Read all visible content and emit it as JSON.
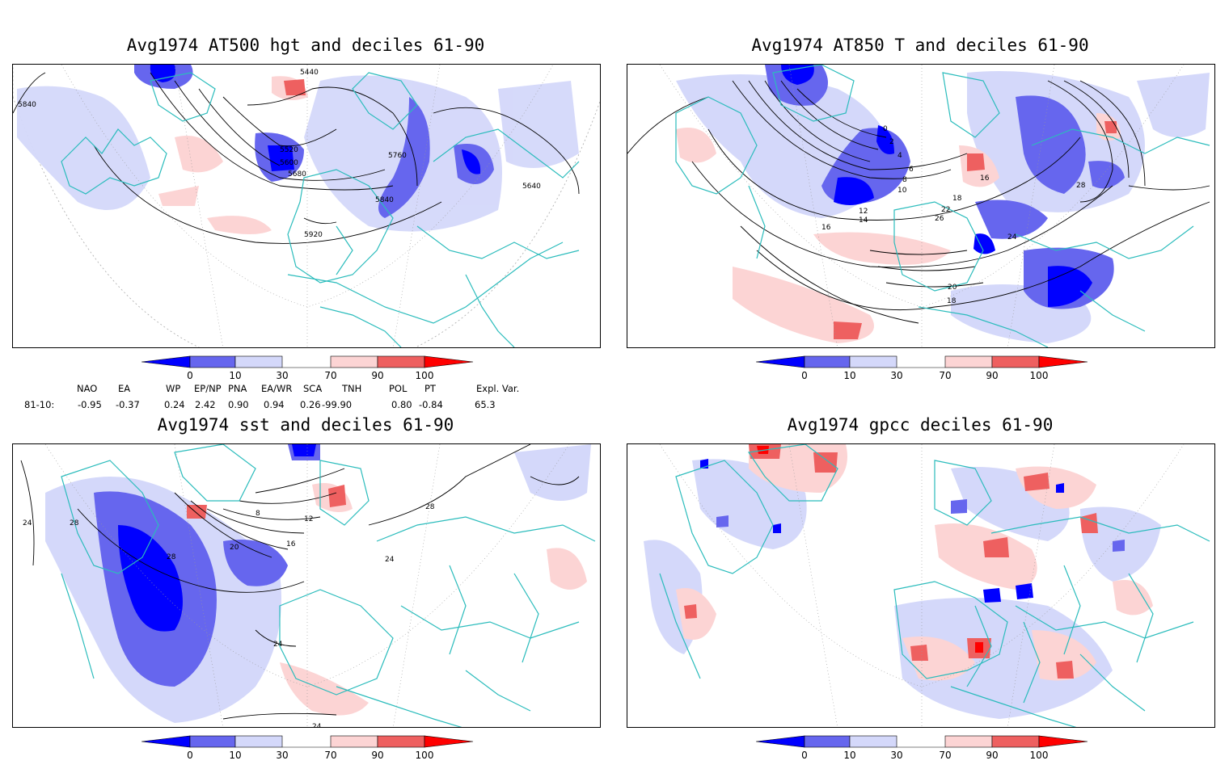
{
  "panels": [
    {
      "title": "Avg1974 AT500 hgt and deciles 61-90",
      "contour_labels": [
        "5440",
        "5840",
        "5520",
        "5600",
        "5680",
        "5760",
        "5840",
        "5640",
        "5920"
      ]
    },
    {
      "title": "Avg1974 AT850 T and deciles 61-90",
      "contour_labels": [
        "0",
        "2",
        "4",
        "6",
        "8",
        "10",
        "12",
        "14",
        "16",
        "18",
        "22",
        "24",
        "26",
        "28",
        "16",
        "20",
        "18"
      ]
    },
    {
      "title": "Avg1974 sst and deciles 61-90",
      "contour_labels": [
        "24",
        "28",
        "28",
        "8",
        "12",
        "16",
        "20",
        "24",
        "24",
        "28",
        "24"
      ]
    },
    {
      "title": "Avg1974 gpcc deciles 61-90",
      "contour_labels": []
    }
  ],
  "colorbar": {
    "tick_labels": [
      "0",
      "10",
      "30",
      "70",
      "90",
      "100"
    ],
    "colors": [
      "#0000ff",
      "#6666ee",
      "#d4d8fa",
      "#ffffff",
      "#fcd4d4",
      "#ee6060",
      "#ff0000"
    ]
  },
  "indices": {
    "headers": [
      "NAO",
      "EA",
      "WP",
      "EP/NP",
      "PNA",
      "EA/WR",
      "SCA",
      "TNH",
      "POL",
      "PT",
      "Expl. Var."
    ],
    "row_label": "81-10:",
    "values": [
      "-0.95",
      "-0.37",
      "0.24",
      "2.42",
      "0.90",
      "0.94",
      "0.26",
      "-99.90",
      "0.80",
      "-0.84",
      "65.3"
    ]
  }
}
